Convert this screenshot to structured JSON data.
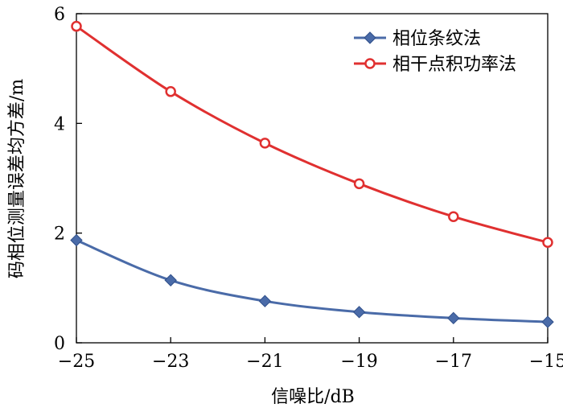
{
  "chart_data": {
    "type": "line",
    "xlabel": "信噪比/dB",
    "ylabel": "码相位测量误差均方差/m",
    "x": [
      -25,
      -23,
      -21,
      -19,
      -17,
      -15
    ],
    "x_tick_labels": [
      "−25",
      "−23",
      "−21",
      "−19",
      "−17",
      "−15"
    ],
    "xlim": [
      -25,
      -15
    ],
    "ylim": [
      0,
      6
    ],
    "y_ticks": [
      0,
      2,
      4,
      6
    ],
    "y_tick_labels": [
      "0",
      "2",
      "4",
      "6"
    ],
    "grid": false,
    "legend_position": "top-right",
    "series": [
      {
        "name": "相位条纹法",
        "color": "#4a6ba8",
        "marker": "diamond",
        "values": [
          1.87,
          1.14,
          0.76,
          0.56,
          0.45,
          0.38
        ]
      },
      {
        "name": "相干点积功率法",
        "color": "#e03030",
        "marker": "circle",
        "values": [
          5.77,
          4.58,
          3.64,
          2.9,
          2.3,
          1.83
        ]
      }
    ]
  }
}
